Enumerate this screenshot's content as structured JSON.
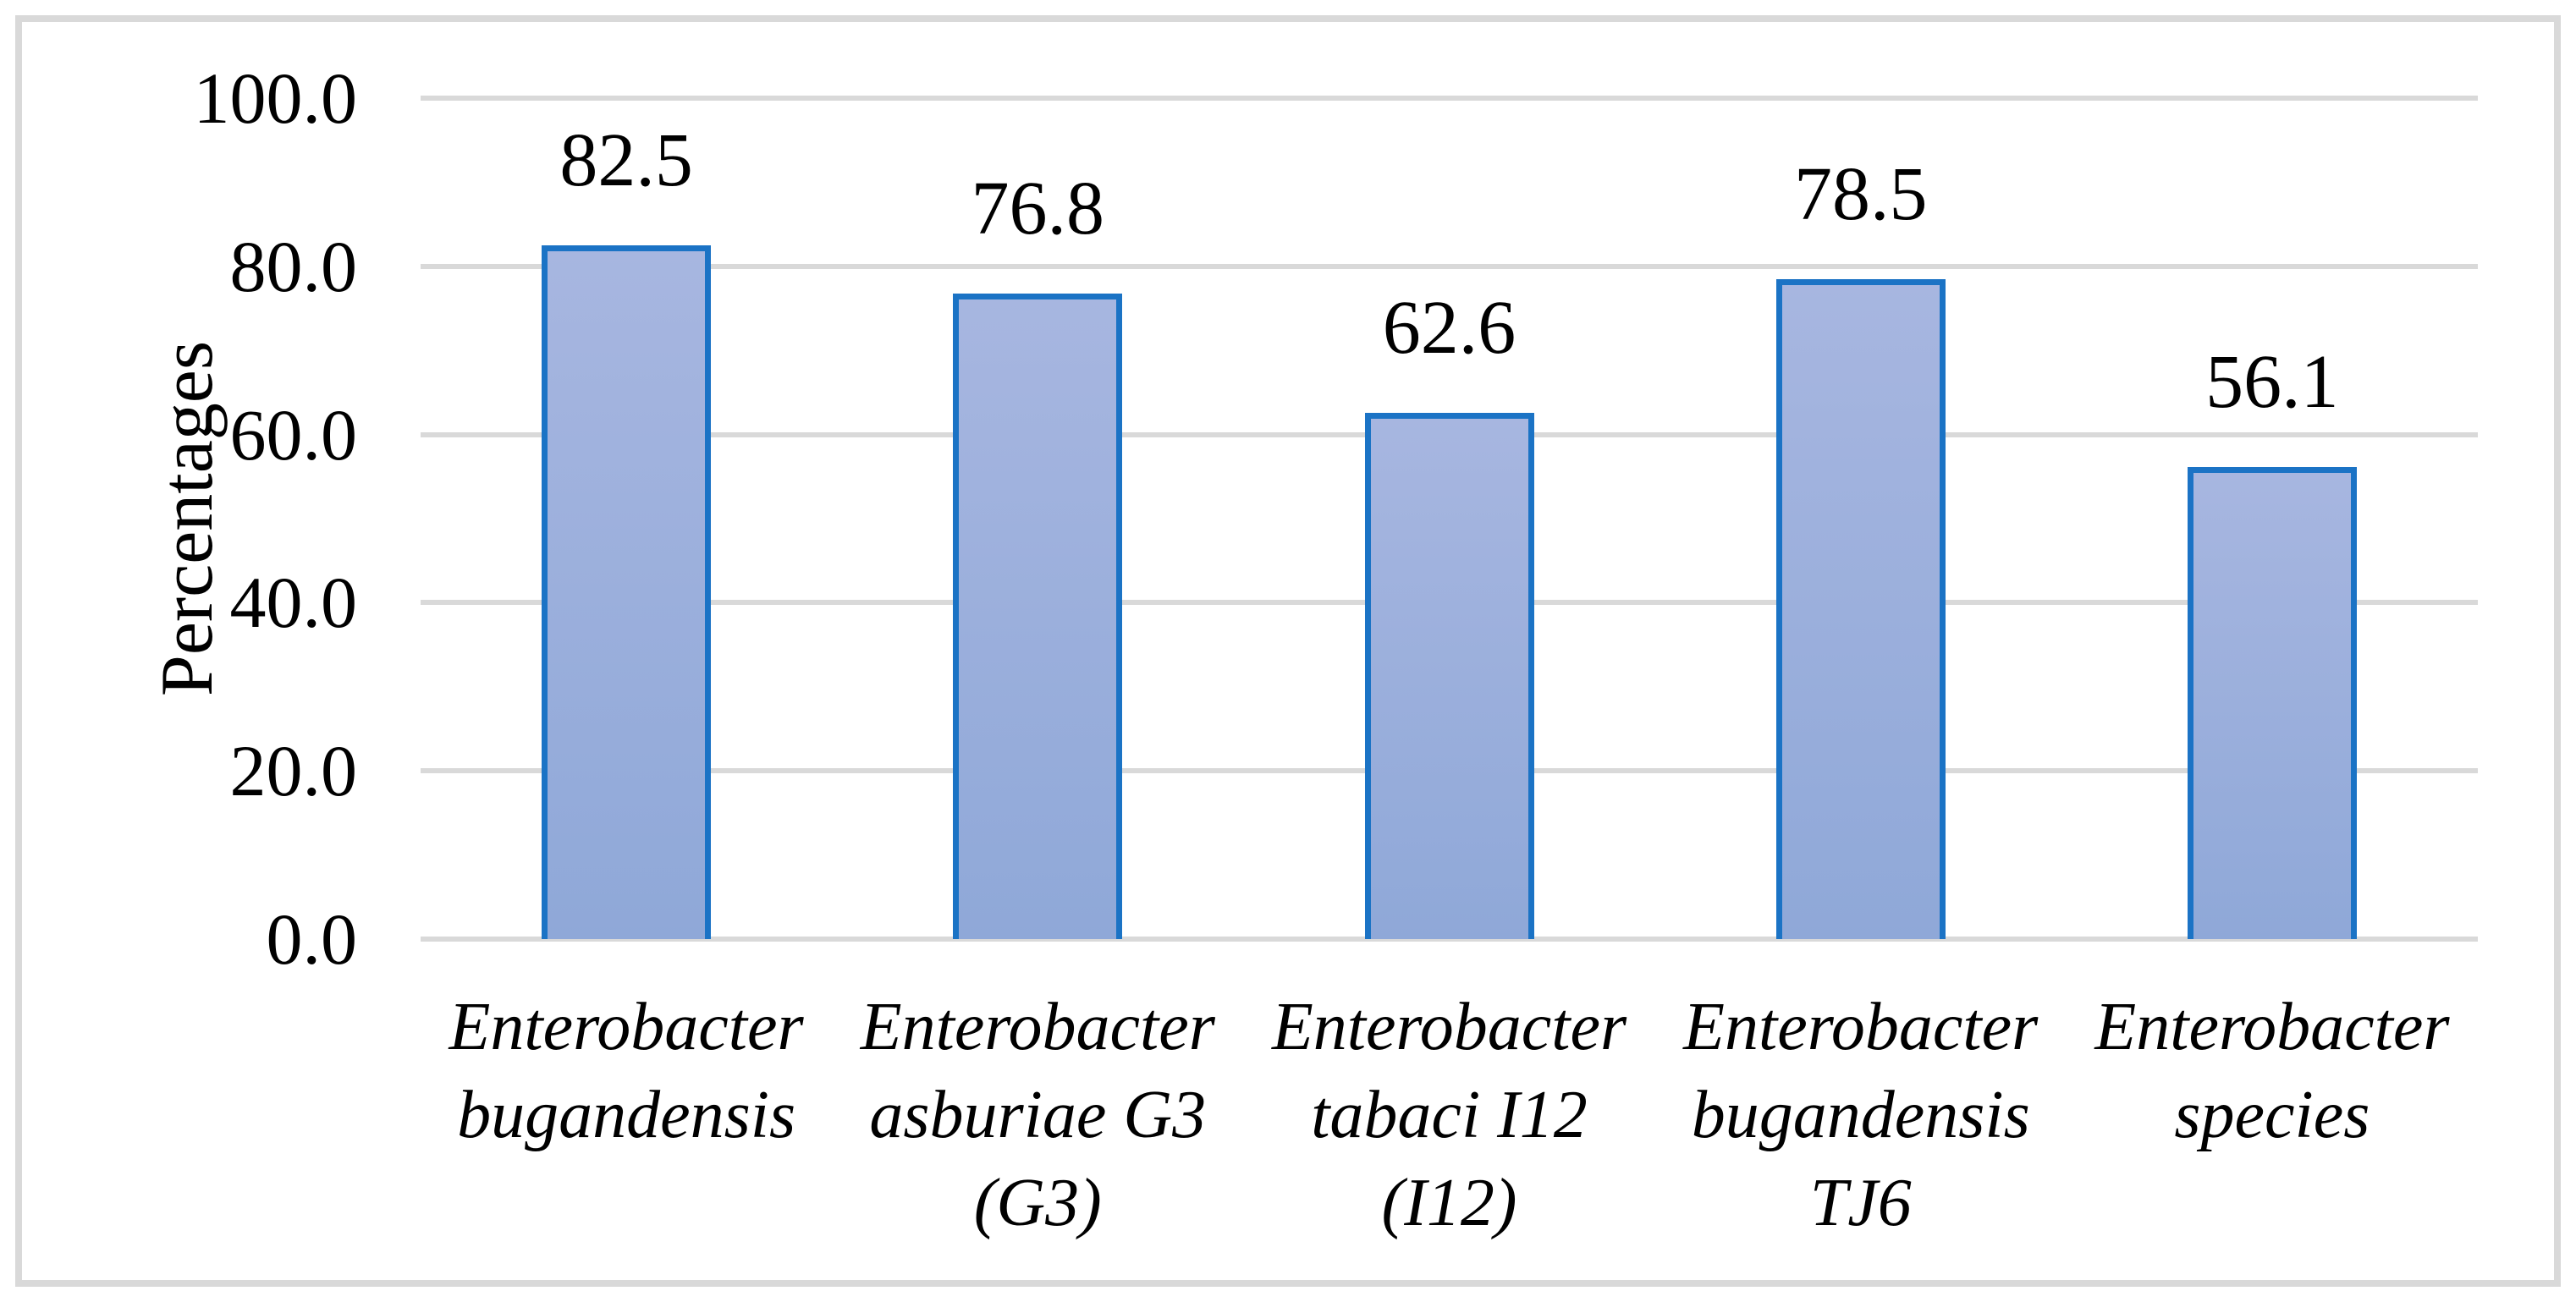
{
  "chart_data": {
    "type": "bar",
    "title": "",
    "xlabel": "",
    "ylabel": "Percentages",
    "ylim": [
      0,
      100
    ],
    "grid": true,
    "legend_position": "none",
    "categories": [
      "Enterobacter bugandensis",
      "Enterobacter asburiae G3 (G3)",
      "Enterobacter tabaci I12 (I12)",
      "Enterobacter bugandensis TJ6",
      "Enterobacter species"
    ],
    "category_lines": [
      [
        "Enterobacter",
        "bugandensis"
      ],
      [
        "Enterobacter",
        "asburiae G3",
        "(G3)"
      ],
      [
        "Enterobacter",
        "tabaci I12 (I12)"
      ],
      [
        "Enterobacter",
        "bugandensis",
        "TJ6"
      ],
      [
        "Enterobacter",
        "species"
      ]
    ],
    "values": [
      82.5,
      76.8,
      62.6,
      78.5,
      56.1
    ],
    "value_labels": [
      "82.5",
      "76.8",
      "62.6",
      "78.5",
      "56.1"
    ],
    "ytick_labels": [
      "100.0",
      "80.0",
      "60.0",
      "40.0",
      "20.0",
      "0.0"
    ],
    "ytick_values": [
      100,
      80,
      60,
      40,
      20,
      0
    ],
    "colors": {
      "bar_fill_top": "#a7b6e0",
      "bar_fill_bottom": "#8fa8d8",
      "bar_border": "#1b73c5",
      "gridline": "#d9d9d9",
      "frame_border": "#d9d9d9",
      "text": "#000000",
      "background": "#ffffff"
    }
  }
}
